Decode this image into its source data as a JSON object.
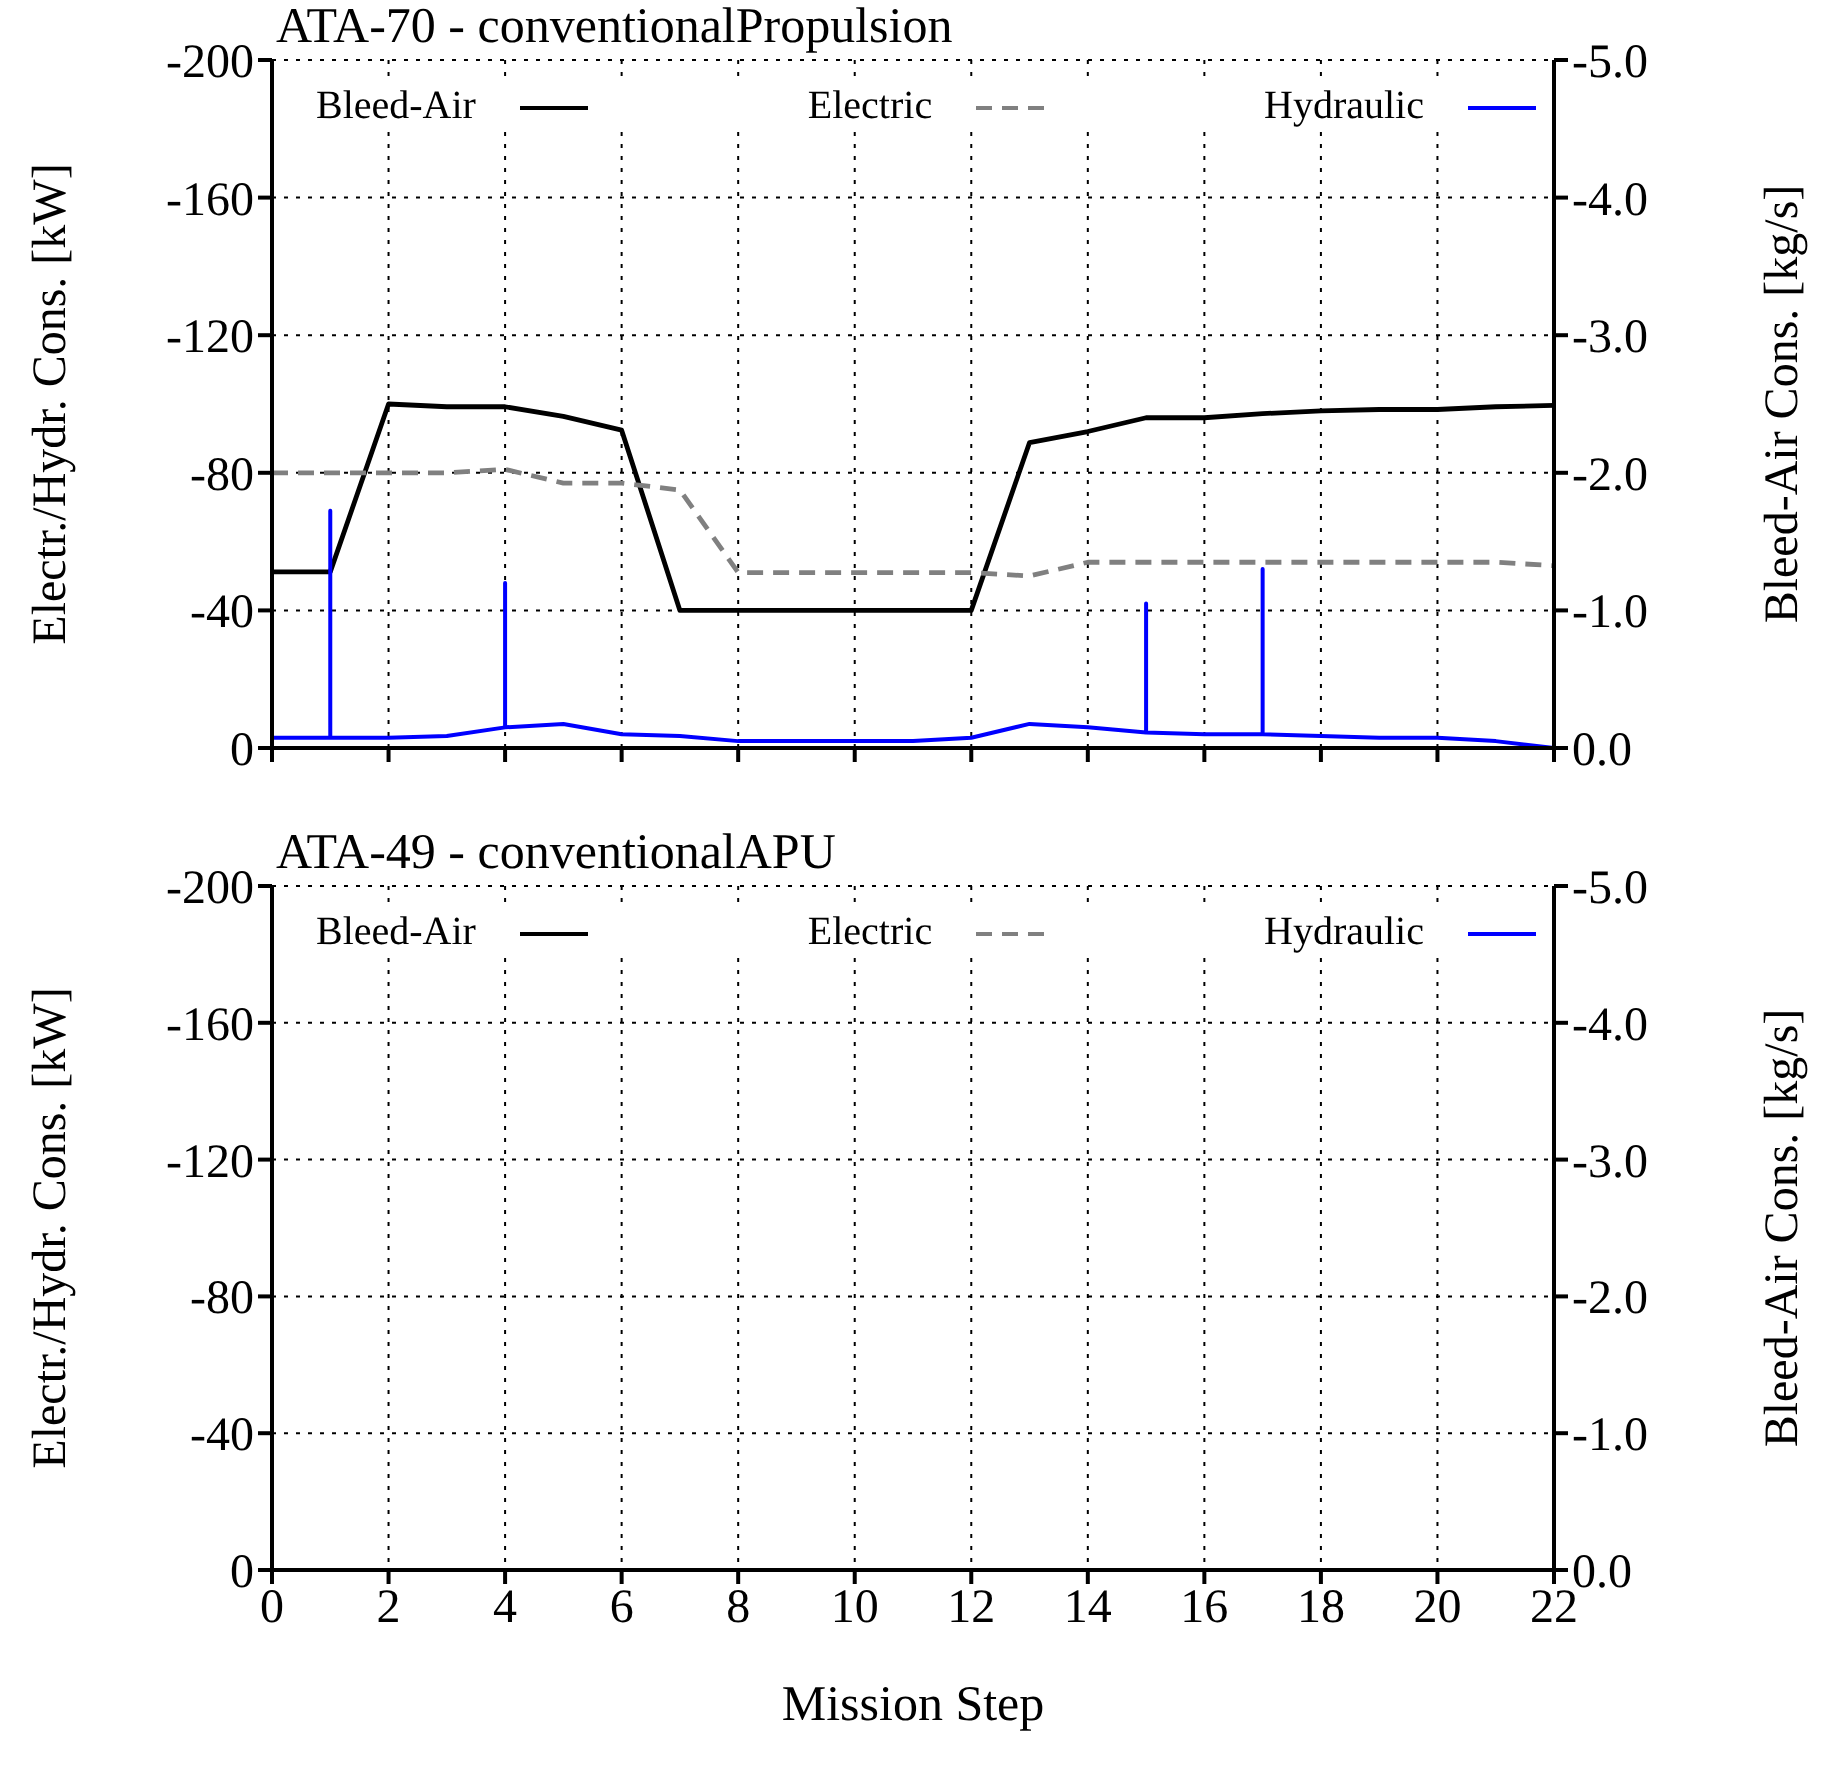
{
  "chart_data": [
    {
      "type": "line",
      "title": "ATA-70 - conventionalPropulsion",
      "ylabel": "Electr./Hydr. Cons. [kW]",
      "y2label": "Bleed-Air Cons. [kg/s]",
      "xlim": [
        0,
        22
      ],
      "xticks": [
        0,
        2,
        4,
        6,
        8,
        10,
        12,
        14,
        16,
        18,
        20,
        22
      ],
      "ylim": [
        0,
        -200
      ],
      "yticks": [
        0,
        -40,
        -80,
        -120,
        -160,
        -200
      ],
      "y2lim": [
        0,
        -5
      ],
      "y2ticks": [
        {
          "value": 0,
          "label": "0.0"
        },
        {
          "value": -1,
          "label": "-1.0"
        },
        {
          "value": -2,
          "label": "-2.0"
        },
        {
          "value": -3,
          "label": "-3.0"
        },
        {
          "value": -4,
          "label": "-4.0"
        },
        {
          "value": -5,
          "label": "-5.0"
        }
      ],
      "grid": true,
      "legend": "top",
      "tick_labels": "y",
      "marker": "none",
      "series": [
        {
          "name": "Bleed-Air",
          "color": "#000000",
          "axis": "y2",
          "line_style": "solid",
          "x": [
            0,
            1,
            2,
            3,
            4,
            5,
            6,
            7,
            8,
            9,
            10,
            11,
            12,
            13,
            14,
            15,
            16,
            17,
            18,
            19,
            20,
            21,
            22
          ],
          "values": [
            -1.28,
            -1.28,
            -2.5,
            -2.48,
            -2.48,
            -2.41,
            -2.31,
            -1.0,
            -1.0,
            -1.0,
            -1.0,
            -1.0,
            -1.0,
            -2.22,
            -2.3,
            -2.4,
            -2.4,
            -2.43,
            -2.45,
            -2.46,
            -2.46,
            -2.48,
            -2.49
          ]
        },
        {
          "name": "Electric",
          "color": "#808080",
          "line_style": "dashed",
          "x": [
            0,
            1,
            2,
            3,
            4,
            5,
            6,
            7,
            8,
            9,
            10,
            11,
            12,
            13,
            14,
            15,
            16,
            17,
            18,
            19,
            20,
            21,
            22
          ],
          "values": [
            -80,
            -80,
            -80,
            -80,
            -81,
            -77,
            -77,
            -75,
            -51,
            -51,
            -51,
            -51,
            -51,
            -50,
            -54,
            -54,
            -54,
            -54,
            -54,
            -54,
            -54,
            -54,
            -53
          ]
        },
        {
          "name": "Hydraulic",
          "color": "#0000ff",
          "line_style": "solid",
          "x": [
            0,
            1,
            1,
            1,
            2,
            3,
            4,
            4,
            4,
            5,
            6,
            7,
            8,
            9,
            10,
            11,
            12,
            13,
            14,
            15,
            15,
            15,
            16,
            17,
            17,
            17,
            18,
            19,
            20,
            21,
            22
          ],
          "values": [
            -3,
            -3,
            -69,
            -3,
            -3,
            -3.5,
            -6,
            -48,
            -6,
            -7,
            -4,
            -3.5,
            -2,
            -2,
            -2,
            -2,
            -3,
            -7,
            -6,
            -4.5,
            -42,
            -4.5,
            -4,
            -4,
            -52,
            -4,
            -3.5,
            -3,
            -3,
            -2,
            0
          ]
        }
      ]
    },
    {
      "type": "line",
      "title": "ATA-49 - conventionalAPU",
      "xlabel": "Mission Step",
      "categories": [
        "0",
        null,
        "2",
        null,
        "4",
        null,
        "6",
        null,
        "8",
        null,
        "10",
        null,
        "12",
        null,
        "14",
        null,
        "16",
        null,
        "18",
        null,
        "20",
        null,
        "22"
      ],
      "ylabel": "Electr./Hydr. Cons. [kW]",
      "y2label": "Bleed-Air Cons. [kg/s]",
      "ylim": [
        0,
        -200
      ],
      "yticks": [
        0,
        -40,
        -80,
        -120,
        -160,
        -200
      ],
      "y2lim": [
        0,
        -5
      ],
      "y2ticks": [
        {
          "value": 0,
          "label": "0.0"
        },
        {
          "value": -1,
          "label": "-1.0"
        },
        {
          "value": -2,
          "label": "-2.0"
        },
        {
          "value": -3,
          "label": "-3.0"
        },
        {
          "value": -4,
          "label": "-4.0"
        },
        {
          "value": -5,
          "label": "-5.0"
        }
      ],
      "grid": true,
      "legend": "top",
      "marker": "none",
      "series": [
        {
          "name": "Bleed-Air",
          "color": "#000000",
          "axis": "y2",
          "line_style": "solid",
          "values": [
            null,
            null,
            null,
            null,
            null,
            null,
            null,
            null,
            null,
            null,
            null,
            null,
            null,
            null,
            null,
            null,
            null,
            null,
            null,
            null,
            null,
            null,
            null
          ]
        },
        {
          "name": "Electric",
          "color": "#808080",
          "line_style": "dashed",
          "values": [
            null,
            null,
            null,
            null,
            null,
            null,
            null,
            null,
            null,
            null,
            null,
            null,
            null,
            null,
            null,
            null,
            null,
            null,
            null,
            null,
            null,
            null,
            null
          ]
        },
        {
          "name": "Hydraulic",
          "color": "#0000ff",
          "line_style": "solid",
          "values": [
            null,
            null,
            null,
            null,
            null,
            null,
            null,
            null,
            null,
            null,
            null,
            null,
            null,
            null,
            null,
            null,
            null,
            null,
            null,
            null,
            null,
            null,
            null
          ]
        }
      ]
    }
  ]
}
